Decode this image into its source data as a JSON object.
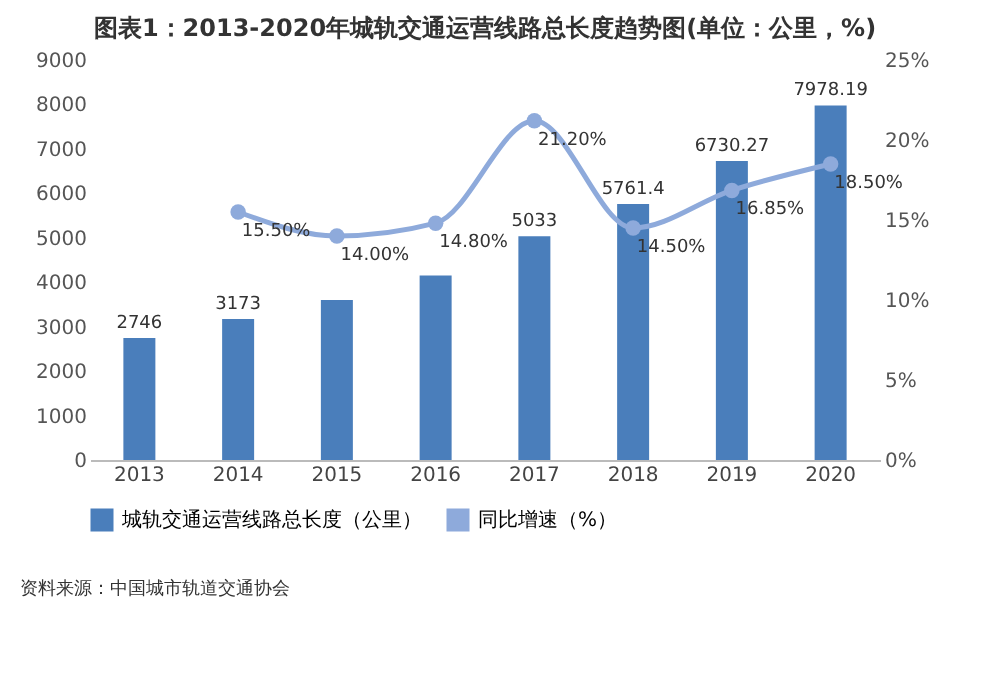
{
  "chart_data": {
    "type": "bar",
    "title": "图表1：2013-2020年城轨交通运营线路总长度趋势图(单位：公里，%)",
    "categories": [
      "2013",
      "2014",
      "2015",
      "2016",
      "2017",
      "2018",
      "2019",
      "2020"
    ],
    "series": [
      {
        "name": "城轨交通运营线路总长度（公里）",
        "color": "#4a7ebb",
        "values": [
          2746,
          3173,
          3600,
          4150,
          5033,
          5761.4,
          6730.27,
          7978.19
        ],
        "value_labels": [
          "2746",
          "3173",
          null,
          null,
          "5033",
          "5761.4",
          "6730.27",
          "7978.19"
        ]
      },
      {
        "name": "同比增速（%）",
        "type": "line",
        "axis": "y2",
        "color": "#8eaadb",
        "marker": "circle",
        "values": [
          null,
          15.5,
          14.0,
          14.8,
          21.2,
          14.5,
          16.85,
          18.5
        ],
        "value_labels": [
          null,
          "15.50%",
          "14.00%",
          "14.80%",
          "21.20%",
          "14.50%",
          "16.85%",
          "18.50%"
        ]
      }
    ],
    "ylim": [
      0,
      9000
    ],
    "yticks": [
      0,
      1000,
      2000,
      3000,
      4000,
      5000,
      6000,
      7000,
      8000,
      9000
    ],
    "y2lim": [
      0,
      25
    ],
    "y2ticks": [
      {
        "value": 0,
        "label": "0%"
      },
      {
        "value": 5,
        "label": "5%"
      },
      {
        "value": 10,
        "label": "10%"
      },
      {
        "value": 15,
        "label": "15%"
      },
      {
        "value": 20,
        "label": "20%"
      },
      {
        "value": 25,
        "label": "25%"
      }
    ],
    "grid": false,
    "legend": "bottom",
    "annotations": [
      "资料来源：中国城市轨道交通协会"
    ]
  }
}
